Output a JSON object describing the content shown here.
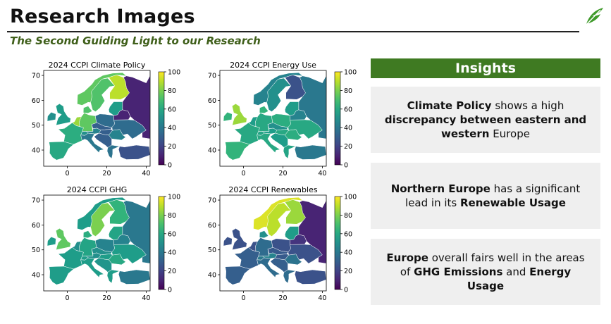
{
  "header": {
    "title": "Research Images",
    "subtitle": "The Second Guiding Light to our Research",
    "logo_icon": "leaf-logo-icon"
  },
  "colors": {
    "accent": "#3f7a22",
    "subtitle": "#3f5f1a",
    "card_bg": "#efefef",
    "colormap": "viridis"
  },
  "chart_data": [
    {
      "type": "heatmap",
      "title": "2024 CCPI Climate Policy",
      "xticks": [
        "0",
        "20",
        "40"
      ],
      "yticks": [
        "70",
        "60",
        "50",
        "40"
      ],
      "colorbar_ticks": [
        "100",
        "80",
        "60",
        "40",
        "20",
        "0"
      ],
      "colorbar_range": [
        0,
        100
      ],
      "regions": {
        "iberia": 60,
        "france": 62,
        "uk": 55,
        "ireland": 50,
        "benelux": 85,
        "germany": 75,
        "denmark": 72,
        "norway": 75,
        "sweden": 72,
        "finland": 90,
        "baltics": 55,
        "poland": 35,
        "czechia": 30,
        "austria": 45,
        "switzerland": 50,
        "italy": 40,
        "balkans": 30,
        "greece": 38,
        "hungary": 30,
        "romania": 45,
        "ukraine": 35,
        "belarus": 10,
        "russia": 10,
        "turkey": 25
      }
    },
    {
      "type": "heatmap",
      "title": "2024 CCPI Energy Use",
      "xticks": [
        "0",
        "20",
        "40"
      ],
      "yticks": [
        "70",
        "60",
        "50",
        "40"
      ],
      "colorbar_ticks": [
        "100",
        "80",
        "60",
        "40",
        "20",
        "0"
      ],
      "colorbar_range": [
        0,
        100
      ],
      "regions": {
        "iberia": 65,
        "france": 60,
        "uk": 85,
        "ireland": 65,
        "benelux": 55,
        "germany": 60,
        "denmark": 65,
        "norway": 45,
        "sweden": 50,
        "finland": 25,
        "baltics": 55,
        "poland": 62,
        "czechia": 50,
        "austria": 55,
        "switzerland": 58,
        "italy": 60,
        "balkans": 55,
        "greece": 58,
        "hungary": 60,
        "romania": 62,
        "ukraine": 60,
        "belarus": 45,
        "russia": 40,
        "turkey": 40
      }
    },
    {
      "type": "heatmap",
      "title": "2024 CCPI GHG",
      "xticks": [
        "0",
        "20",
        "40"
      ],
      "yticks": [
        "70",
        "60",
        "50",
        "40"
      ],
      "colorbar_ticks": [
        "100",
        "80",
        "60",
        "40",
        "20",
        "0"
      ],
      "colorbar_range": [
        0,
        100
      ],
      "regions": {
        "iberia": 55,
        "france": 55,
        "uk": 75,
        "ireland": 55,
        "benelux": 50,
        "germany": 58,
        "denmark": 62,
        "norway": 55,
        "sweden": 80,
        "finland": 65,
        "baltics": 58,
        "poland": 45,
        "czechia": 50,
        "austria": 50,
        "switzerland": 55,
        "italy": 55,
        "balkans": 52,
        "greece": 55,
        "hungary": 55,
        "romania": 60,
        "ukraine": 55,
        "belarus": 45,
        "russia": 40,
        "turkey": 40
      }
    },
    {
      "type": "heatmap",
      "title": "2024 CCPI Renewables",
      "xticks": [
        "0",
        "20",
        "40"
      ],
      "yticks": [
        "70",
        "60",
        "50",
        "40"
      ],
      "colorbar_ticks": [
        "100",
        "80",
        "60",
        "40",
        "20",
        "0"
      ],
      "colorbar_range": [
        0,
        100
      ],
      "regions": {
        "iberia": 30,
        "france": 30,
        "uk": 25,
        "ireland": 25,
        "benelux": 25,
        "germany": 35,
        "denmark": 50,
        "norway": 95,
        "sweden": 90,
        "finland": 85,
        "baltics": 55,
        "poland": 25,
        "czechia": 28,
        "austria": 45,
        "switzerland": 40,
        "italy": 35,
        "balkans": 30,
        "greece": 35,
        "hungary": 28,
        "romania": 38,
        "ukraine": 25,
        "belarus": 15,
        "russia": 10,
        "turkey": 25
      }
    }
  ],
  "insights": {
    "heading": "Insights",
    "cards": [
      [
        {
          "t": "Climate Policy",
          "b": true
        },
        {
          "t": " shows a high ",
          "b": false
        },
        {
          "t": "discrepancy between eastern and western",
          "b": true
        },
        {
          "t": " Europe",
          "b": false
        }
      ],
      [
        {
          "t": "Northern Europe",
          "b": true
        },
        {
          "t": " has a significant lead in its ",
          "b": false
        },
        {
          "t": "Renewable Usage",
          "b": true
        }
      ],
      [
        {
          "t": "Europe",
          "b": true
        },
        {
          "t": " overall fairs well in the areas of ",
          "b": false
        },
        {
          "t": "GHG Emissions",
          "b": true
        },
        {
          "t": " and ",
          "b": false
        },
        {
          "t": "Energy Usage",
          "b": true
        }
      ]
    ]
  }
}
